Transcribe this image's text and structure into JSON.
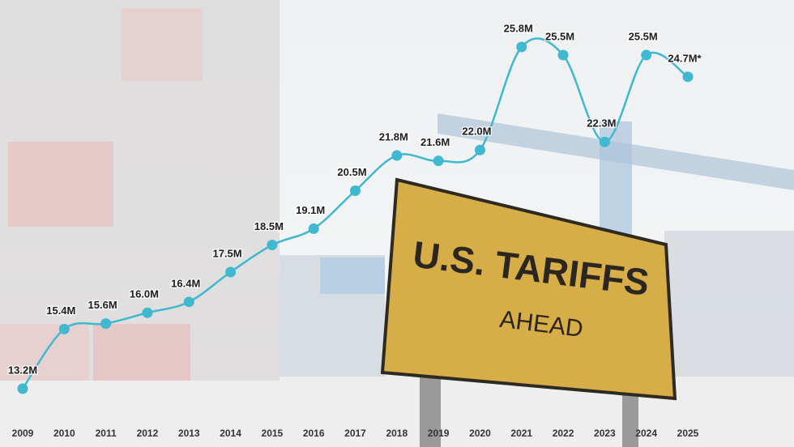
{
  "chart_data": {
    "type": "line",
    "categories": [
      "2009",
      "2010",
      "2011",
      "2012",
      "2013",
      "2014",
      "2015",
      "2016",
      "2017",
      "2018",
      "2019",
      "2020",
      "2021",
      "2022",
      "2023",
      "2024",
      "2025"
    ],
    "values": [
      13.2,
      15.4,
      15.6,
      16.0,
      16.4,
      17.5,
      18.5,
      19.1,
      20.5,
      21.8,
      21.6,
      22.0,
      25.8,
      25.5,
      22.3,
      25.5,
      24.7
    ],
    "value_labels": [
      "13.2M",
      "15.4M",
      "15.6M",
      "16.0M",
      "16.4M",
      "17.5M",
      "18.5M",
      "19.1M",
      "20.5M",
      "21.8M",
      "21.6M",
      "22.0M",
      "25.8M",
      "25.5M",
      "22.3M",
      "25.5M",
      "24.7M*"
    ],
    "color": "#3fb8d0"
  },
  "sign": {
    "line1": "U.S. TARIFFS",
    "line2": "AHEAD"
  }
}
